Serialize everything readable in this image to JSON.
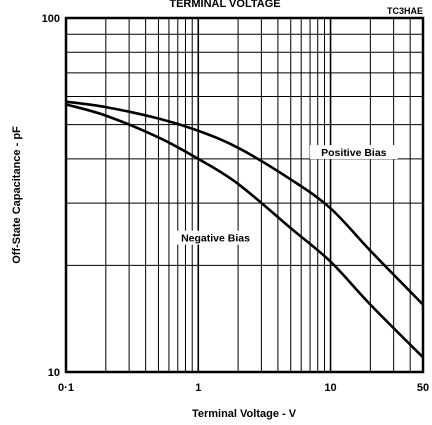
{
  "chart_data": {
    "type": "line",
    "title": "TERMINAL VOLTAGE",
    "code": "TC3HAE",
    "xlabel": "Terminal Voltage  - V",
    "ylabel": "Off-State Capacitance - pF",
    "x_scale": "log",
    "y_scale": "log",
    "xlim": [
      0.1,
      50
    ],
    "ylim": [
      10,
      100
    ],
    "x_ticks": [
      "0·1",
      "1",
      "10",
      "50"
    ],
    "y_ticks": [
      "100",
      "10"
    ],
    "grid": true,
    "series": [
      {
        "name": "Positive Bias",
        "x": [
          0.1,
          0.2,
          0.5,
          1,
          2,
          5,
          10,
          20,
          50
        ],
        "y": [
          58,
          56,
          52,
          48,
          43,
          35,
          29,
          22,
          15.5
        ]
      },
      {
        "name": "Negative Bias",
        "x": [
          0.1,
          0.2,
          0.5,
          1,
          2,
          5,
          10,
          20,
          50
        ],
        "y": [
          57,
          53,
          46,
          40,
          34,
          25.5,
          20.5,
          15.5,
          11
        ]
      }
    ],
    "annotations": [
      {
        "text": "Positive Bias",
        "x": 15,
        "y": 41
      },
      {
        "text": "Negative Bias",
        "x": 1.35,
        "y": 23.5
      }
    ]
  }
}
